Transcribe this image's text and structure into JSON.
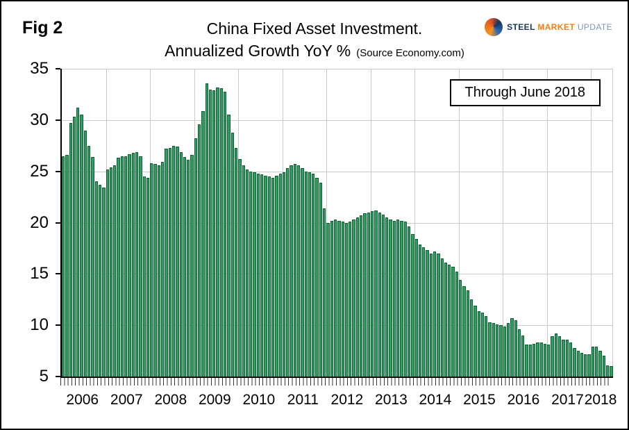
{
  "figure_label": "Fig 2",
  "header": {
    "title_line1": "China Fixed Asset Investment.",
    "title_line2": "Annualized Growth YoY %",
    "source_note": "(Source Economy.com)"
  },
  "logo": {
    "word1": "STEEL",
    "word2": "MARKET",
    "word3": "UPDATE"
  },
  "annotation": {
    "label": "Through June 2018"
  },
  "colors": {
    "bar_fill": "#2f9e5f",
    "bar_border": "#0f5f36",
    "grid_line": "#c9c9c9",
    "axis": "#000000",
    "annotation_border": "#000000",
    "logo_navy": "#16365c",
    "logo_orange": "#f07f13",
    "logo_slate": "#7f96b2"
  },
  "chart_data": {
    "type": "bar",
    "title": "China Fixed Asset Investment. Annualized Growth YoY %",
    "xlabel": "",
    "ylabel": "",
    "ylim": [
      5,
      35
    ],
    "yticks": [
      5,
      10,
      15,
      20,
      25,
      30,
      35
    ],
    "grid": true,
    "x_unit": "month",
    "annotation": "Through June 2018",
    "years": [
      {
        "label": "2006",
        "months": 12
      },
      {
        "label": "2007",
        "months": 12
      },
      {
        "label": "2008",
        "months": 12
      },
      {
        "label": "2009",
        "months": 12
      },
      {
        "label": "2010",
        "months": 12
      },
      {
        "label": "2011",
        "months": 12
      },
      {
        "label": "2012",
        "months": 12
      },
      {
        "label": "2013",
        "months": 12
      },
      {
        "label": "2014",
        "months": 12
      },
      {
        "label": "2015",
        "months": 12
      },
      {
        "label": "2016",
        "months": 12
      },
      {
        "label": "2017",
        "months": 12
      },
      {
        "label": "2018",
        "months": 6
      }
    ],
    "values": {
      "2006": [
        26.5,
        26.6,
        29.7,
        30.3,
        31.2,
        30.5,
        29.0,
        27.5,
        26.4,
        24.0,
        23.7,
        23.4
      ],
      "2007": [
        25.2,
        25.4,
        25.6,
        26.3,
        26.5,
        26.5,
        26.7,
        26.8,
        26.9,
        26.5,
        24.5,
        24.4
      ],
      "2008": [
        25.8,
        25.7,
        25.6,
        25.9,
        27.2,
        27.3,
        27.5,
        27.4,
        26.9,
        26.4,
        26.1,
        26.6
      ],
      "2009": [
        28.2,
        29.6,
        30.9,
        33.6,
        33.0,
        32.9,
        33.2,
        33.1,
        32.8,
        30.5,
        28.8,
        27.3
      ],
      "2010": [
        26.2,
        25.6,
        25.2,
        25.0,
        24.9,
        24.8,
        24.7,
        24.6,
        24.5,
        24.4,
        24.6,
        24.8
      ],
      "2011": [
        24.9,
        25.3,
        25.6,
        25.7,
        25.6,
        25.3,
        25.0,
        24.9,
        24.8,
        24.4,
        23.9,
        21.4
      ],
      "2012": [
        20.0,
        20.2,
        20.3,
        20.2,
        20.1,
        20.0,
        20.1,
        20.3,
        20.5,
        20.7,
        20.9,
        21.0
      ],
      "2013": [
        21.1,
        21.2,
        21.0,
        20.8,
        20.5,
        20.3,
        20.2,
        20.3,
        20.2,
        20.1,
        19.6,
        18.9
      ],
      "2014": [
        18.4,
        17.9,
        17.6,
        17.3,
        17.0,
        17.2,
        17.0,
        16.5,
        16.1,
        15.9,
        15.7,
        15.2
      ],
      "2015": [
        14.4,
        13.8,
        13.4,
        12.5,
        11.9,
        11.4,
        11.2,
        10.9,
        10.3,
        10.2,
        10.1,
        10.0
      ],
      "2016": [
        9.9,
        10.2,
        10.7,
        10.5,
        9.6,
        9.0,
        8.1,
        8.1,
        8.2,
        8.3,
        8.3,
        8.2
      ],
      "2017": [
        8.1,
        8.9,
        9.2,
        8.9,
        8.6,
        8.6,
        8.3,
        7.8,
        7.5,
        7.3,
        7.2,
        7.2
      ],
      "2018": [
        7.9,
        7.9,
        7.5,
        7.0,
        6.1,
        6.0
      ]
    }
  }
}
